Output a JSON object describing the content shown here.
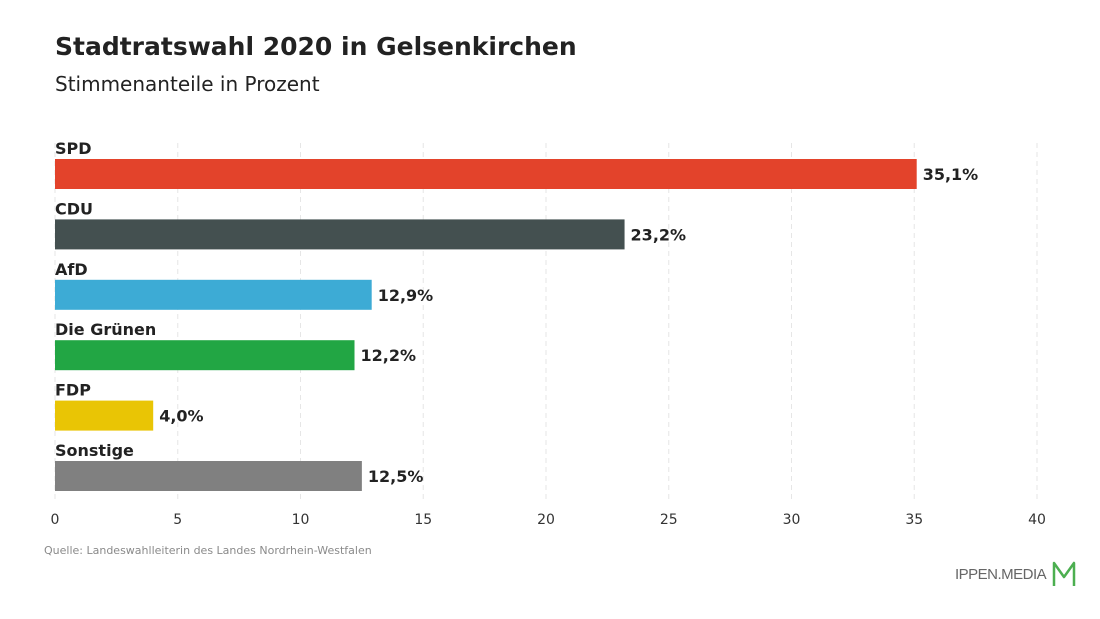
{
  "chart_data": {
    "type": "bar",
    "orientation": "horizontal",
    "title": "Stadtratswahl 2020 in Gelsenkirchen",
    "subtitle": "Stimmenanteile in Prozent",
    "categories": [
      "SPD",
      "CDU",
      "AfD",
      "Die Grünen",
      "FDP",
      "Sonstige"
    ],
    "values": [
      35.1,
      23.2,
      12.9,
      12.2,
      4.0,
      12.5
    ],
    "value_labels": [
      "35,1%",
      "23,2%",
      "12,9%",
      "12,2%",
      "4,0%",
      "12,5%"
    ],
    "colors": [
      "#e3432b",
      "#445050",
      "#3dabd5",
      "#22a644",
      "#e9c505",
      "#808080"
    ],
    "xlim": [
      0,
      40
    ],
    "xticks": [
      0,
      5,
      10,
      15,
      20,
      25,
      30,
      35,
      40
    ],
    "grid": true,
    "xlabel": "",
    "ylabel": ""
  },
  "source": "Quelle: Landeswahlleiterin des Landes Nordrhein-Westfalen",
  "brand": {
    "name": "IPPEN.MEDIA",
    "accent": "#4caf50"
  }
}
